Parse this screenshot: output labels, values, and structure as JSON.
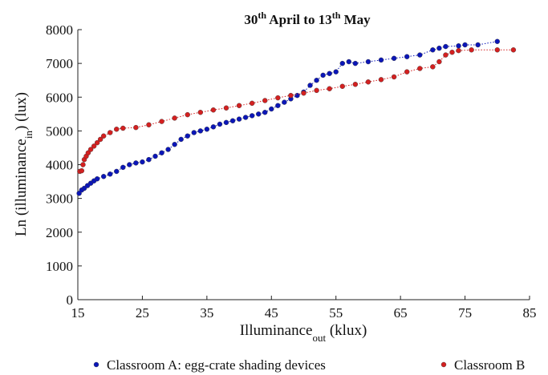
{
  "chart_data": {
    "type": "scatter",
    "title": [
      {
        "text": "30"
      },
      {
        "text": "th",
        "sup": true
      },
      {
        "text": " April to 13"
      },
      {
        "text": "th",
        "sup": true
      },
      {
        "text": " May"
      }
    ],
    "y_label": [
      {
        "text": "Ln (illuminance"
      },
      {
        "text": "in",
        "sub": true
      },
      {
        "text": ") (lux)"
      }
    ],
    "x_label": [
      {
        "text": "Illuminance"
      },
      {
        "text": "out",
        "sub": true
      },
      {
        "text": " (klux)"
      }
    ],
    "xlim": [
      15,
      85
    ],
    "xticks": [
      15,
      25,
      35,
      45,
      55,
      65,
      75,
      85
    ],
    "ylim": [
      0,
      8000
    ],
    "yticks": [
      0,
      1000,
      2000,
      3000,
      4000,
      5000,
      6000,
      7000,
      8000
    ],
    "grid": false,
    "legend": "bottom",
    "series": [
      {
        "name": "Classroom A: egg-crate shading devices",
        "color": "#0b16b8",
        "x": [
          15.2,
          15.6,
          16,
          16.5,
          17,
          17.5,
          18,
          19,
          20,
          21,
          22,
          23,
          24,
          25,
          26,
          27,
          28,
          29,
          30,
          31,
          32,
          33,
          34,
          35,
          36,
          37,
          38,
          39,
          40,
          41,
          42,
          43,
          44,
          45,
          46,
          47,
          48,
          49,
          50,
          51,
          52,
          53,
          54,
          55,
          56,
          57,
          58,
          60,
          62,
          64,
          66,
          68,
          70,
          71,
          72,
          74,
          75,
          77,
          80
        ],
        "y": [
          3150,
          3250,
          3300,
          3380,
          3450,
          3520,
          3580,
          3650,
          3720,
          3800,
          3920,
          4000,
          4050,
          4080,
          4150,
          4250,
          4350,
          4450,
          4600,
          4750,
          4850,
          4950,
          5000,
          5050,
          5120,
          5200,
          5250,
          5300,
          5350,
          5400,
          5450,
          5500,
          5550,
          5650,
          5750,
          5850,
          5950,
          6050,
          6150,
          6350,
          6500,
          6650,
          6700,
          6750,
          7000,
          7050,
          7000,
          7050,
          7100,
          7150,
          7200,
          7250,
          7400,
          7450,
          7500,
          7520,
          7550,
          7550,
          7650
        ]
      },
      {
        "name": "Classroom B",
        "color": "#d42020",
        "x": [
          15.3,
          15.6,
          15.8,
          16,
          16.3,
          16.6,
          17,
          17.5,
          18,
          18.5,
          19,
          20,
          21,
          22,
          24,
          26,
          28,
          30,
          32,
          34,
          36,
          38,
          40,
          42,
          44,
          46,
          48,
          50,
          52,
          54,
          56,
          58,
          60,
          62,
          64,
          66,
          68,
          70,
          71,
          72,
          73,
          74,
          76,
          80,
          82.5
        ],
        "y": [
          3800,
          3820,
          4000,
          4150,
          4250,
          4350,
          4450,
          4550,
          4650,
          4750,
          4850,
          4950,
          5050,
          5080,
          5100,
          5180,
          5280,
          5380,
          5480,
          5550,
          5620,
          5680,
          5750,
          5820,
          5900,
          5980,
          6050,
          6120,
          6200,
          6250,
          6320,
          6380,
          6450,
          6520,
          6600,
          6750,
          6850,
          6900,
          7050,
          7250,
          7330,
          7380,
          7400,
          7400,
          7400
        ]
      }
    ]
  }
}
